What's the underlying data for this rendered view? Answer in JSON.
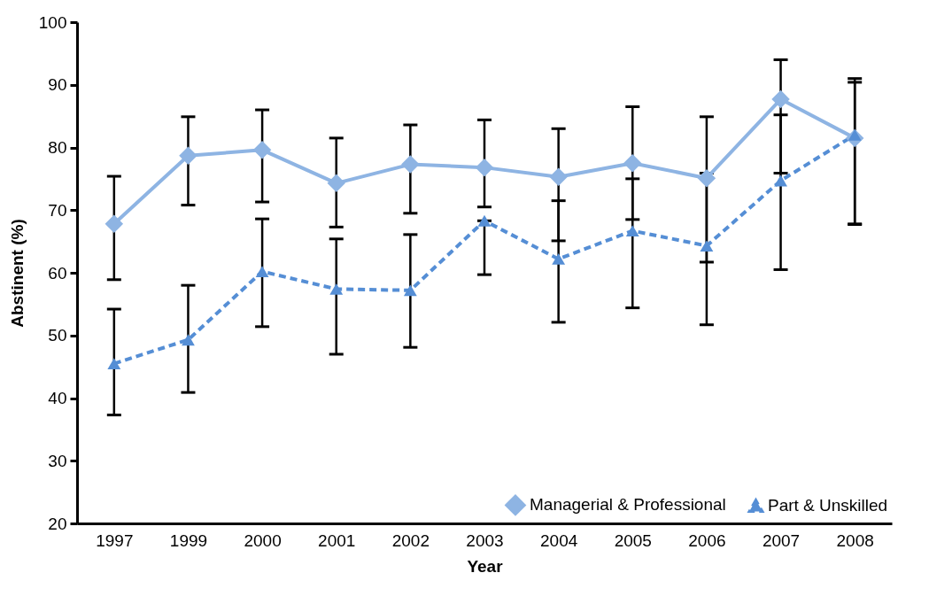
{
  "chart_data": {
    "type": "line",
    "xlabel": "Year",
    "ylabel": "Abstinent (%)",
    "categories": [
      "1997",
      "1999",
      "2000",
      "2001",
      "2002",
      "2003",
      "2004",
      "2005",
      "2006",
      "2007",
      "2008"
    ],
    "ylim": [
      20,
      100
    ],
    "yticks": [
      20,
      30,
      40,
      50,
      60,
      70,
      80,
      90,
      100
    ],
    "grid": false,
    "legend": "bottom right",
    "series": [
      {
        "name": "Managerial & Professional",
        "color": "#8eb4e3",
        "marker": "diamond",
        "line_style": "solid",
        "values": [
          67.8,
          78.7,
          79.6,
          74.3,
          77.3,
          76.8,
          75.3,
          77.5,
          75.1,
          87.7,
          81.5
        ],
        "errors": [
          [
            58.9,
            75.4
          ],
          [
            70.8,
            84.9
          ],
          [
            71.3,
            86.0
          ],
          [
            67.3,
            81.5
          ],
          [
            69.5,
            83.6
          ],
          [
            70.5,
            84.4
          ],
          [
            65.1,
            83.0
          ],
          [
            68.5,
            86.5
          ],
          [
            61.7,
            84.9
          ],
          [
            75.9,
            94.0
          ],
          [
            67.8,
            91.0
          ]
        ]
      },
      {
        "name": "Part & Unskilled",
        "color": "#558ed5",
        "marker": "triangle",
        "line_style": "dashed",
        "values": [
          45.5,
          49.3,
          60.2,
          57.4,
          57.2,
          68.3,
          62.2,
          66.7,
          64.3,
          74.7,
          82.0
        ],
        "errors": [
          [
            37.3,
            54.2
          ],
          [
            40.9,
            58.0
          ],
          [
            51.4,
            68.6
          ],
          [
            47.0,
            65.4
          ],
          [
            48.1,
            66.1
          ],
          [
            59.7,
            68.3
          ],
          [
            52.1,
            71.5
          ],
          [
            54.4,
            75.0
          ],
          [
            51.7,
            75.9
          ],
          [
            60.5,
            85.2
          ],
          [
            67.7,
            90.4
          ]
        ]
      }
    ]
  }
}
